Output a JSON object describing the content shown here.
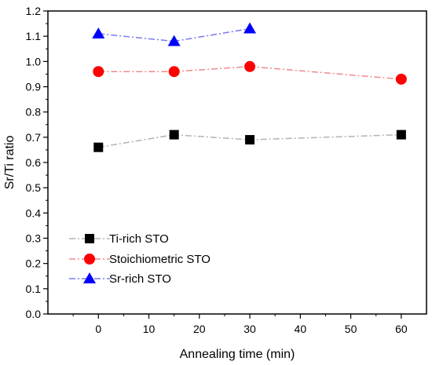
{
  "chart_data": {
    "type": "line",
    "title": "",
    "xlabel": "Annealing time (min)",
    "ylabel": "Sr/Ti ratio",
    "xlim": [
      -10,
      65
    ],
    "ylim": [
      0.0,
      1.2
    ],
    "xticks": [
      0,
      10,
      20,
      30,
      40,
      50,
      60
    ],
    "yticks": [
      0.0,
      0.1,
      0.2,
      0.3,
      0.4,
      0.5,
      0.6,
      0.7,
      0.8,
      0.9,
      1.0,
      1.1,
      1.2
    ],
    "xtick_labels": [
      "0",
      "10",
      "20",
      "30",
      "40",
      "50",
      "60"
    ],
    "ytick_labels": [
      "0.0",
      "0.1",
      "0.2",
      "0.3",
      "0.4",
      "0.5",
      "0.6",
      "0.7",
      "0.8",
      "0.9",
      "1.0",
      "1.1",
      "1.2"
    ],
    "grid": false,
    "legend_position": "bottom-left",
    "series": [
      {
        "name": "Ti-rich STO",
        "marker": "square",
        "marker_color": "#000000",
        "line_color": "#b3b3b3",
        "x": [
          0,
          15,
          30,
          60
        ],
        "y": [
          0.66,
          0.71,
          0.69,
          0.71
        ]
      },
      {
        "name": "Stoichiometric STO",
        "marker": "circle",
        "marker_color": "#ff0000",
        "line_color": "#f08a8a",
        "x": [
          0,
          15,
          30,
          60
        ],
        "y": [
          0.96,
          0.96,
          0.98,
          0.93
        ]
      },
      {
        "name": "Sr-rich STO",
        "marker": "triangle",
        "marker_color": "#0000ff",
        "line_color": "#7a7af0",
        "x": [
          0,
          15,
          30
        ],
        "y": [
          1.11,
          1.08,
          1.13
        ]
      }
    ]
  }
}
